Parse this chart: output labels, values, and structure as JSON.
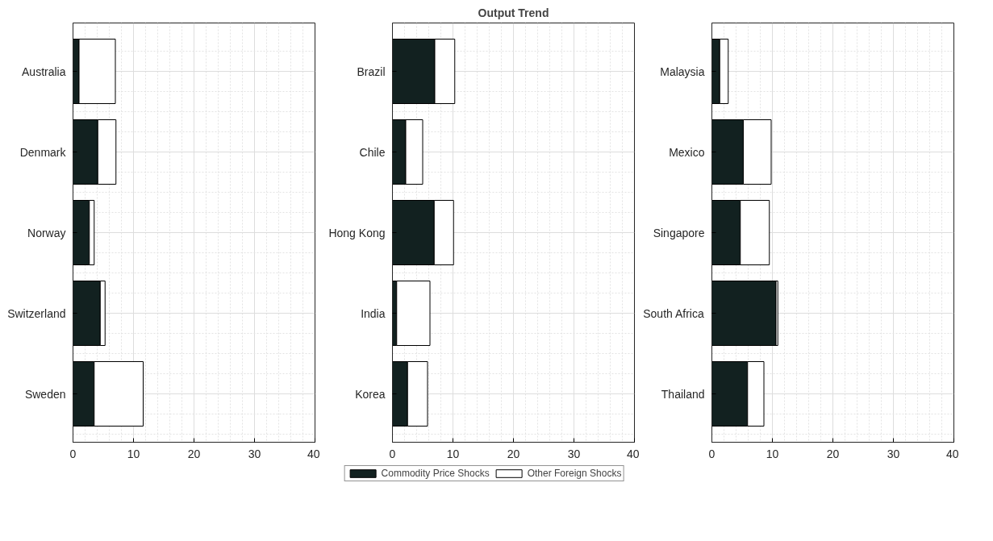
{
  "chart_data": [
    {
      "type": "bar",
      "orientation": "horizontal",
      "stacked": true,
      "categories": [
        "Australia",
        "Denmark",
        "Norway",
        "Switzerland",
        "Sweden"
      ],
      "xlim": [
        0,
        40
      ],
      "xticks": [
        0,
        10,
        20,
        30,
        40
      ],
      "grid": true,
      "series": [
        {
          "color": "#122120",
          "values": [
            1.0,
            4.1,
            2.7,
            4.5,
            3.5
          ]
        },
        {
          "color": "#ffffff",
          "values": [
            6.0,
            3.0,
            0.8,
            0.8,
            8.1
          ]
        }
      ]
    },
    {
      "type": "bar",
      "orientation": "horizontal",
      "stacked": true,
      "title": "Output Trend",
      "categories": [
        "Brazil",
        "Chile",
        "Hong Kong",
        "India",
        "Korea"
      ],
      "xlim": [
        0,
        40
      ],
      "xticks": [
        0,
        10,
        20,
        30,
        40
      ],
      "grid": true,
      "legend": "bottom",
      "series": [
        {
          "name": "Commodity Price Shocks",
          "color": "#122120",
          "values": [
            7.0,
            2.2,
            6.9,
            0.7,
            2.5
          ]
        },
        {
          "name": "Other Foreign Shocks",
          "color": "#ffffff",
          "values": [
            3.3,
            2.8,
            3.2,
            5.5,
            3.3
          ]
        }
      ]
    },
    {
      "type": "bar",
      "orientation": "horizontal",
      "stacked": true,
      "categories": [
        "Malaysia",
        "Mexico",
        "Singapore",
        "South Africa",
        "Thailand"
      ],
      "xlim": [
        0,
        40
      ],
      "xticks": [
        0,
        10,
        20,
        30,
        40
      ],
      "grid": true,
      "series": [
        {
          "color": "#122120",
          "values": [
            1.3,
            5.2,
            4.7,
            10.6,
            5.9
          ]
        },
        {
          "color": "#ffffff",
          "values": [
            1.4,
            4.6,
            4.8,
            0.3,
            2.7
          ]
        }
      ]
    }
  ]
}
